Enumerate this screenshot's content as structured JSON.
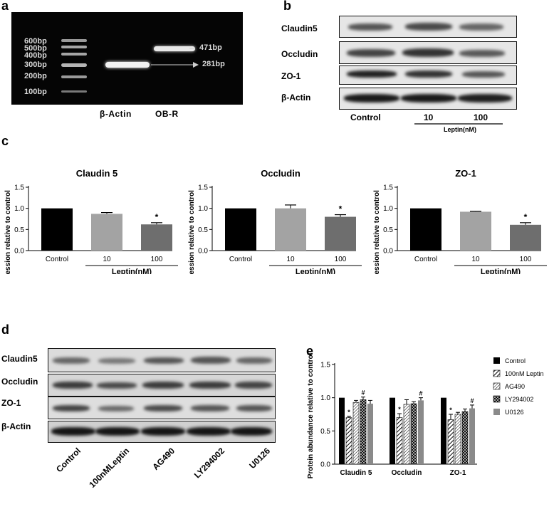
{
  "panel_a": {
    "letter": "a",
    "ladder_labels": [
      "600bp",
      "500bp",
      "400bp",
      "300bp",
      "200bp",
      "100bp"
    ],
    "band_labels": [
      "471bp",
      "281bp"
    ],
    "lane_labels": [
      "β-Actin",
      "OB-R"
    ]
  },
  "panel_b": {
    "letter": "b",
    "rows": [
      "Claudin5",
      "Occludin",
      "ZO-1",
      "β-Actin"
    ],
    "lanes": [
      "Control",
      "10",
      "100"
    ],
    "group_label": "Leptin(nM)"
  },
  "panel_c_letter": "c",
  "panel_d": {
    "letter": "d",
    "rows": [
      "Claudin5",
      "Occludin",
      "ZO-1",
      "β-Actin"
    ],
    "lanes": [
      "Control",
      "100nMLeptin",
      "AG490",
      "LY294002",
      "U0126"
    ]
  },
  "panel_e_letter": "e",
  "chart_data": [
    {
      "type": "bar",
      "title": "Claudin 5",
      "ylabel": "Protein expression relative to control",
      "categories": [
        "Control",
        "10",
        "100"
      ],
      "group_label": "Leptin(nM)",
      "values": [
        1.0,
        0.87,
        0.62
      ],
      "errors": [
        0,
        0.03,
        0.04
      ],
      "annotations": [
        "",
        "",
        "*"
      ],
      "colors": [
        "#000000",
        "#a3a3a3",
        "#6e6e6e"
      ],
      "ylim": [
        0,
        1.5
      ],
      "yticks": [
        "0.0",
        "0.5",
        "1.0",
        "1.5"
      ]
    },
    {
      "type": "bar",
      "title": "Occludin",
      "ylabel": "Protein expression relative to control",
      "categories": [
        "Control",
        "10",
        "100"
      ],
      "group_label": "Leptin(nM)",
      "values": [
        1.0,
        1.0,
        0.8
      ],
      "errors": [
        0,
        0.08,
        0.05
      ],
      "annotations": [
        "",
        "",
        "*"
      ],
      "colors": [
        "#000000",
        "#a3a3a3",
        "#6e6e6e"
      ],
      "ylim": [
        0,
        1.5
      ],
      "yticks": [
        "0.0",
        "0.5",
        "1.0",
        "1.5"
      ]
    },
    {
      "type": "bar",
      "title": "ZO-1",
      "ylabel": "Protein expression relative to control",
      "categories": [
        "Control",
        "10",
        "100"
      ],
      "group_label": "Leptin(nM)",
      "values": [
        1.0,
        0.92,
        0.61
      ],
      "errors": [
        0,
        0.01,
        0.05
      ],
      "annotations": [
        "",
        "",
        "*"
      ],
      "colors": [
        "#000000",
        "#a3a3a3",
        "#6e6e6e"
      ],
      "ylim": [
        0,
        1.5
      ],
      "yticks": [
        "0.0",
        "0.5",
        "1.0",
        "1.5"
      ]
    },
    {
      "type": "bar",
      "ylabel": "Protein abundance relative to control",
      "categories": [
        "Claudin 5",
        "Occludin",
        "ZO-1"
      ],
      "ylim": [
        0,
        1.5
      ],
      "yticks": [
        "0.0",
        "0.5",
        "1.0",
        "1.5"
      ],
      "legend_position": "right",
      "series": [
        {
          "name": "Control",
          "values": [
            1.0,
            1.0,
            1.0
          ],
          "errors": [
            0,
            0,
            0
          ],
          "annotations": [
            "",
            "",
            ""
          ],
          "pattern": "solid"
        },
        {
          "name": "100nM Leptin",
          "values": [
            0.7,
            0.7,
            0.67
          ],
          "errors": [
            0.02,
            0.06,
            0.08
          ],
          "annotations": [
            "*",
            "*",
            "*"
          ],
          "pattern": "hatch"
        },
        {
          "name": "AG490",
          "values": [
            0.93,
            0.9,
            0.75
          ],
          "errors": [
            0.03,
            0.07,
            0.03
          ],
          "annotations": [
            "",
            "",
            ""
          ],
          "pattern": "hatch-fine"
        },
        {
          "name": "LY294002",
          "values": [
            0.97,
            0.91,
            0.79
          ],
          "errors": [
            0.04,
            0.03,
            0.04
          ],
          "annotations": [
            "#",
            "",
            ""
          ],
          "pattern": "cross"
        },
        {
          "name": "U0126",
          "values": [
            0.91,
            0.96,
            0.84
          ],
          "errors": [
            0.05,
            0.04,
            0.05
          ],
          "annotations": [
            "",
            "#",
            "#"
          ],
          "pattern": "gray"
        }
      ]
    }
  ]
}
